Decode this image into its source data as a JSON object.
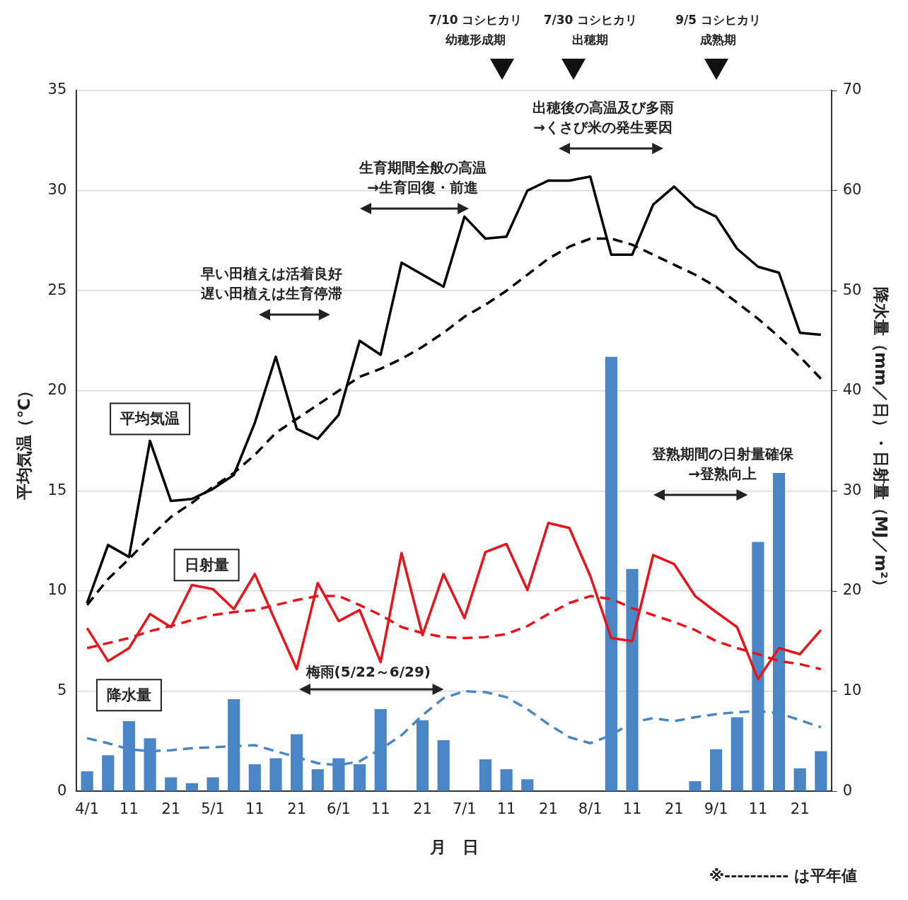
{
  "chart_data": {
    "type": "line",
    "xlabel": "月　日",
    "ylabel": "平均気温（℃）",
    "y2label": "降水量（mm／日）・日射量（MJ／m²）",
    "categories": [
      "4/1",
      null,
      "11",
      null,
      "21",
      null,
      "5/1",
      null,
      "11",
      null,
      "21",
      null,
      "6/1",
      null,
      "11",
      null,
      "21",
      null,
      "7/1",
      null,
      "11",
      null,
      "21",
      null,
      "8/1",
      null,
      "11",
      null,
      "21",
      null,
      "9/1",
      null,
      "11",
      null,
      "21",
      null
    ],
    "series": [
      {
        "name": "降水量",
        "type": "bar",
        "axis": "y2",
        "color": "#4a86c6",
        "values": [
          2.0,
          3.6,
          7.0,
          5.3,
          1.4,
          0.8,
          1.4,
          9.2,
          2.7,
          3.3,
          5.7,
          2.2,
          3.3,
          2.7,
          8.2,
          0,
          7.1,
          5.1,
          0,
          3.2,
          2.2,
          1.2,
          0,
          0,
          0,
          43.4,
          22.2,
          0,
          0,
          1.0,
          4.2,
          7.4,
          24.9,
          31.8,
          2.3,
          4.0
        ]
      },
      {
        "axis": "y2",
        "line_style": "dashed",
        "color": "#4a86c6",
        "values": [
          5.3,
          4.8,
          4.2,
          4.0,
          4.1,
          4.3,
          4.4,
          4.5,
          4.6,
          4.0,
          3.4,
          2.8,
          2.6,
          3.0,
          4.2,
          5.6,
          7.6,
          9.3,
          10.0,
          9.9,
          9.4,
          8.2,
          6.7,
          5.4,
          4.8,
          5.6,
          6.9,
          7.3,
          7.0,
          7.4,
          7.7,
          7.9,
          8.0,
          7.8,
          7.1,
          6.4
        ]
      },
      {
        "name": "日射量",
        "axis": "y2",
        "line_style": "solid",
        "color": "#e8131b",
        "values": [
          16.3,
          13.0,
          14.3,
          17.7,
          16.4,
          20.6,
          20.2,
          18.2,
          21.7,
          16.9,
          12.2,
          20.8,
          17.0,
          18.1,
          12.9,
          23.8,
          15.6,
          21.7,
          17.3,
          23.9,
          24.7,
          20.1,
          26.8,
          26.3,
          21.5,
          15.3,
          15.0,
          23.6,
          22.7,
          19.5,
          17.9,
          16.4,
          11.2,
          14.3,
          13.7,
          16.1
        ]
      },
      {
        "axis": "y2",
        "line_style": "dashed",
        "color": "#e8131b",
        "values": [
          14.3,
          14.8,
          15.3,
          16.0,
          16.5,
          17.1,
          17.6,
          17.9,
          18.1,
          18.6,
          19.1,
          19.5,
          19.5,
          18.6,
          17.6,
          16.4,
          15.8,
          15.4,
          15.3,
          15.4,
          15.7,
          16.5,
          17.7,
          18.8,
          19.5,
          19.2,
          18.3,
          17.6,
          16.9,
          16.1,
          15.0,
          14.3,
          13.7,
          13.0,
          12.7,
          12.2
        ]
      },
      {
        "name": "平均気温",
        "axis": "y",
        "line_style": "solid",
        "color": "#000000",
        "values": [
          9.4,
          12.3,
          11.7,
          17.5,
          14.5,
          14.6,
          15.1,
          15.8,
          18.4,
          21.7,
          18.1,
          17.6,
          18.8,
          22.5,
          21.8,
          26.4,
          25.8,
          25.2,
          28.7,
          27.6,
          27.7,
          30.0,
          30.5,
          30.5,
          30.7,
          26.8,
          26.8,
          29.3,
          30.2,
          29.2,
          28.7,
          27.1,
          26.2,
          25.9,
          22.9,
          22.8
        ]
      },
      {
        "axis": "y",
        "line_style": "dashed",
        "color": "#000000",
        "values": [
          9.3,
          10.6,
          11.6,
          12.7,
          13.7,
          14.4,
          15.2,
          15.9,
          16.8,
          17.9,
          18.6,
          19.3,
          20.0,
          20.7,
          21.1,
          21.6,
          22.2,
          22.9,
          23.7,
          24.3,
          25.0,
          25.8,
          26.6,
          27.2,
          27.6,
          27.6,
          27.3,
          26.8,
          26.3,
          25.8,
          25.2,
          24.4,
          23.6,
          22.7,
          21.7,
          20.6
        ]
      }
    ],
    "ylim": [
      0,
      35
    ],
    "yticks": [
      0,
      5,
      10,
      15,
      20,
      25,
      30,
      35
    ],
    "y2lim": [
      0,
      70
    ],
    "y2ticks": [
      0,
      10,
      20,
      30,
      40,
      50,
      60,
      70
    ],
    "grid": "y",
    "marker": "none",
    "annotations": [
      "7/10 コシヒカリ幼穂形成期",
      "7/30 コシヒカリ出穂期",
      "9/5 コシヒカリ成熟期",
      "出穂後の高温及び多雨→くさび米の発生要因",
      "生育期間全般の高温→生育回復・前進",
      "早い田植えは活着良好遅い田植えは生育停滞",
      "登熟期間の日射量確保→登熟向上",
      "梅雨(5/22～6/29)",
      "※---------- は平年値"
    ]
  }
}
